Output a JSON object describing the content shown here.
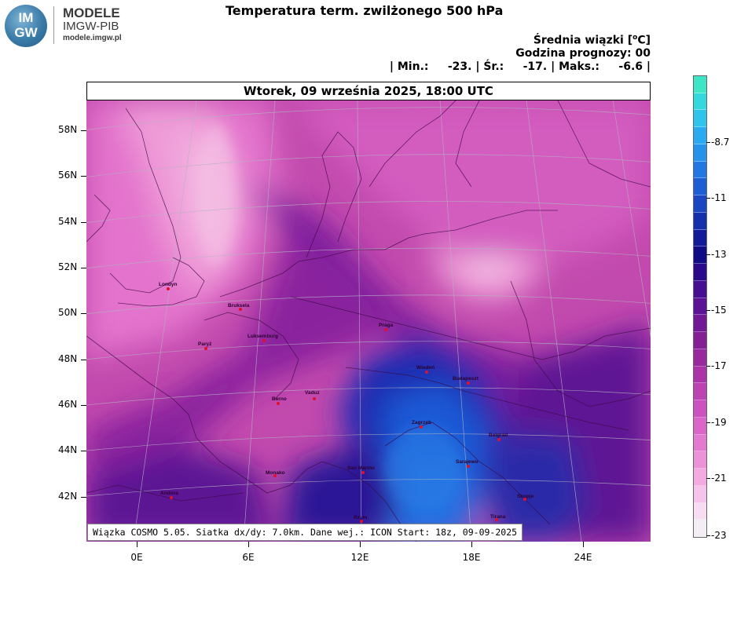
{
  "branding": {
    "logo_text_line1": "IM",
    "logo_text_line2": "GW",
    "name": "MODELE",
    "org": "IMGW-PIB",
    "url": "modele.imgw.pl"
  },
  "title": "Temperatura term. zwilżonego 500 hPa",
  "info": {
    "line1_pre": "Średnia wiązki [",
    "line1_sup": "o",
    "line1_post": "C]",
    "line2": "Godzina prognozy: 00",
    "line3": "| Min.:     -23. | Śr.:     -17. | Maks.:     -6.6 |"
  },
  "date_label": "Wtorek, 09 września 2025, 18:00 UTC",
  "footer_note": "Wiązka COSMO 5.05. Siatka dx/dy: 7.0km. Dane wej.: ICON Start: 18z, 09-09-2025",
  "map": {
    "lat_ticks": [
      "58N",
      "56N",
      "54N",
      "52N",
      "50N",
      "48N",
      "46N",
      "44N",
      "42N"
    ],
    "lon_ticks": [
      "0E",
      "6E",
      "12E",
      "18E",
      "24E"
    ],
    "cities": [
      {
        "name": "Londyn"
      },
      {
        "name": "Bruksela"
      },
      {
        "name": "Paryż"
      },
      {
        "name": "Luksemburg"
      },
      {
        "name": "Praga"
      },
      {
        "name": "Wiedeń"
      },
      {
        "name": "Budapeszt"
      },
      {
        "name": "Berno"
      },
      {
        "name": "Vaduz"
      },
      {
        "name": "Zagrzeb"
      },
      {
        "name": "Belgrad"
      },
      {
        "name": "Sarajewo"
      },
      {
        "name": "Monako"
      },
      {
        "name": "San Marino"
      },
      {
        "name": "Andora"
      },
      {
        "name": "Skopje"
      },
      {
        "name": "Tirana"
      },
      {
        "name": "Rzym"
      }
    ]
  },
  "colorbar": {
    "labels": [
      "-8.7",
      "-11",
      "-13",
      "-15",
      "-17",
      "-19",
      "-21",
      "-23"
    ],
    "colors": [
      "#3ee6c6",
      "#36d8e0",
      "#2ec4ec",
      "#2aaaf0",
      "#2692ea",
      "#2278e0",
      "#1e5ed4",
      "#1a46c2",
      "#1630ac",
      "#121c98",
      "#100c86",
      "#2a0a8a",
      "#460e92",
      "#5c1294",
      "#701896",
      "#842096",
      "#982a9e",
      "#ab34a8",
      "#bd42b4",
      "#cc52c0",
      "#d966c8",
      "#e47ad0",
      "#ec92d8",
      "#f2aae0",
      "#f6c4ea",
      "#f8dcf2",
      "#f3eef4"
    ]
  }
}
